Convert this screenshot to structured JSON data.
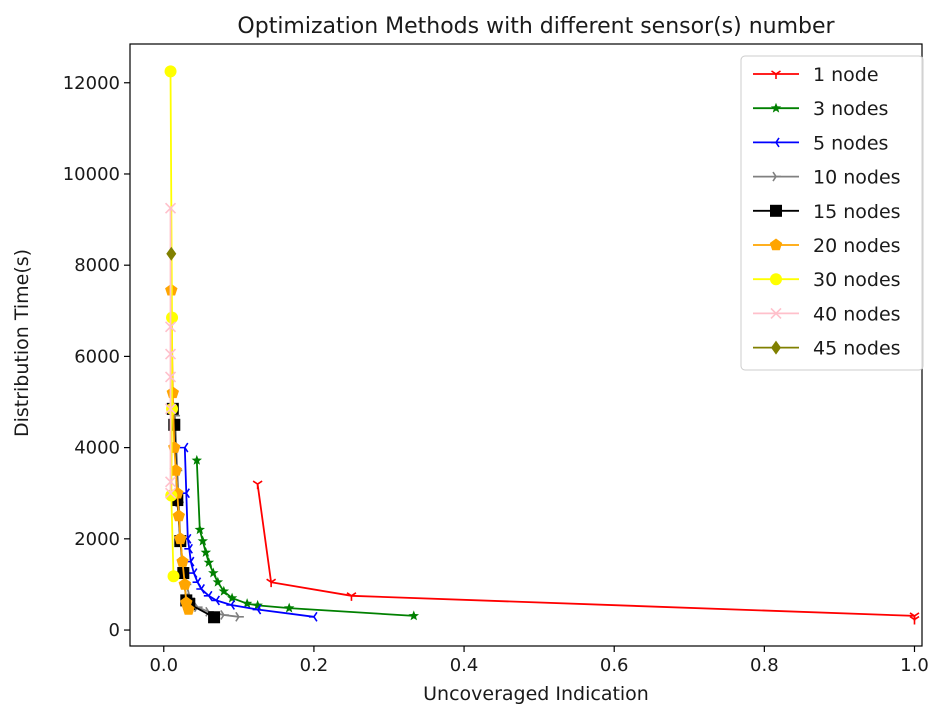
{
  "chart_data": {
    "type": "line",
    "title": "Optimization Methods with different sensor(s) number",
    "xlabel": "Uncoveraged Indication",
    "ylabel": "Distribution Time(s)",
    "xlim": [
      -0.045,
      1.01
    ],
    "ylim": [
      -350,
      12850
    ],
    "xticks": [
      0.0,
      0.2,
      0.4,
      0.6,
      0.8,
      1.0
    ],
    "xtick_labels": [
      "0.0",
      "0.2",
      "0.4",
      "0.6",
      "0.8",
      "1.0"
    ],
    "yticks": [
      0,
      2000,
      4000,
      6000,
      8000,
      10000,
      12000
    ],
    "ytick_labels": [
      "0",
      "2000",
      "4000",
      "6000",
      "8000",
      "10000",
      "12000"
    ],
    "grid": false,
    "legend_position": "top-right",
    "series": [
      {
        "name": "1 node",
        "color": "#ff0000",
        "marker": "tri_down",
        "x": [
          0.125,
          0.143,
          0.25,
          1.0,
          1.0
        ],
        "y": [
          3200,
          1050,
          750,
          310,
          230
        ]
      },
      {
        "name": "3 nodes",
        "color": "#008000",
        "marker": "star",
        "x": [
          0.044,
          0.048,
          0.052,
          0.056,
          0.06,
          0.066,
          0.072,
          0.08,
          0.091,
          0.111,
          0.125,
          0.167,
          0.333
        ],
        "y": [
          3720,
          2200,
          1950,
          1700,
          1480,
          1250,
          1050,
          850,
          700,
          580,
          540,
          480,
          310
        ]
      },
      {
        "name": "5 nodes",
        "color": "#0000ff",
        "marker": "tri_left",
        "x": [
          0.028,
          0.03,
          0.032,
          0.034,
          0.036,
          0.04,
          0.045,
          0.05,
          0.06,
          0.07,
          0.09,
          0.125,
          0.2
        ],
        "y": [
          4000,
          3000,
          2000,
          1780,
          1500,
          1250,
          1050,
          900,
          750,
          650,
          550,
          450,
          290
        ]
      },
      {
        "name": "10 nodes",
        "color": "#808080",
        "marker": "tri_right",
        "x": [
          0.015,
          0.018,
          0.02,
          0.022,
          0.025,
          0.03,
          0.035,
          0.045,
          0.06,
          0.08,
          0.1
        ],
        "y": [
          4700,
          3500,
          2800,
          2000,
          1500,
          1000,
          700,
          500,
          400,
          330,
          290
        ]
      },
      {
        "name": "15 nodes",
        "color": "#000000",
        "marker": "square",
        "x": [
          0.012,
          0.014,
          0.018,
          0.022,
          0.026,
          0.03,
          0.034,
          0.067
        ],
        "y": [
          4850,
          4500,
          2850,
          1950,
          1250,
          650,
          570,
          280
        ]
      },
      {
        "name": "20 nodes",
        "color": "#ffa500",
        "marker": "pentagon",
        "x": [
          0.01,
          0.012,
          0.014,
          0.016,
          0.018,
          0.02,
          0.022,
          0.025,
          0.028,
          0.03,
          0.033
        ],
        "y": [
          7450,
          5200,
          4000,
          3500,
          3000,
          2500,
          2000,
          1500,
          1000,
          600,
          450
        ]
      },
      {
        "name": "30 nodes",
        "color": "#ffff00",
        "marker": "circle",
        "x": [
          0.009,
          0.011,
          0.011,
          0.01,
          0.013
        ],
        "y": [
          12250,
          6850,
          4850,
          2950,
          1180
        ]
      },
      {
        "name": "40 nodes",
        "color": "#ffc0cb",
        "marker": "x",
        "x": [
          0.009,
          0.009,
          0.009,
          0.009,
          0.009,
          0.009,
          0.009
        ],
        "y": [
          9250,
          6650,
          6050,
          5550,
          4850,
          3250,
          3000
        ]
      },
      {
        "name": "45 nodes",
        "color": "#808000",
        "marker": "diamond",
        "x": [
          0.01
        ],
        "y": [
          8250
        ]
      }
    ]
  }
}
